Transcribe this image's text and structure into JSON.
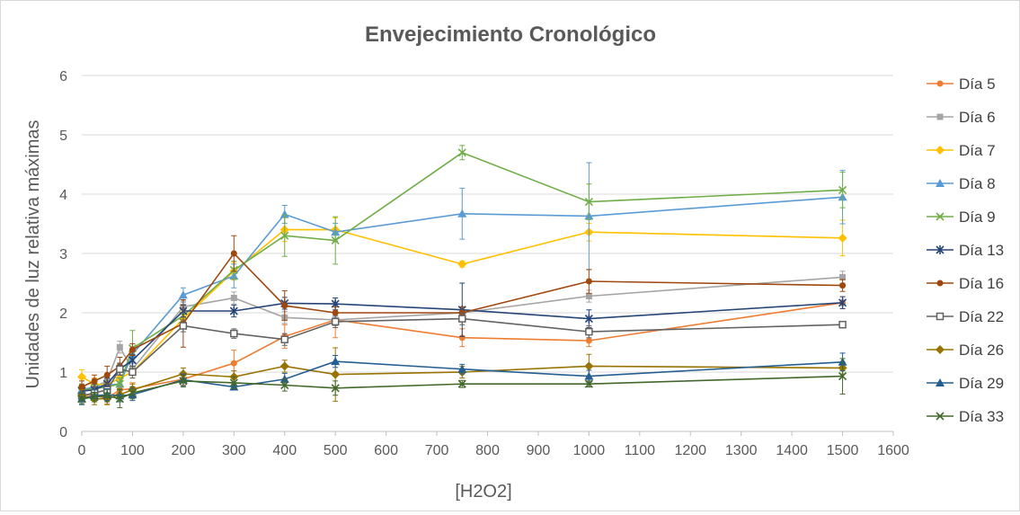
{
  "chart_data": {
    "type": "line",
    "title": "Envejecimiento Cronológico",
    "xlabel": "[H2O2]",
    "ylabel": "Unidades de luz relativa máximas",
    "xlim": [
      0,
      1600
    ],
    "ylim": [
      0,
      6
    ],
    "x_ticks": [
      "0",
      "100",
      "200",
      "300",
      "400",
      "500",
      "600",
      "700",
      "800",
      "900",
      "1000",
      "1100",
      "1200",
      "1300",
      "1400",
      "1500",
      "1600"
    ],
    "y_ticks": [
      "0",
      "1",
      "2",
      "3",
      "4",
      "5",
      "6"
    ],
    "grid": "horizontal",
    "legend_position": "right",
    "x": [
      0,
      25,
      50,
      75,
      100,
      200,
      300,
      400,
      500,
      750,
      1000,
      1500
    ],
    "series": [
      {
        "name": "Día 5",
        "color": "#ed7d31",
        "marker": "circle",
        "values": [
          0.62,
          0.6,
          0.56,
          0.7,
          0.72,
          0.88,
          1.15,
          1.6,
          1.88,
          1.58,
          1.53,
          2.17
        ],
        "errors": [
          0.1,
          0.1,
          0.1,
          0.1,
          0.1,
          0.1,
          0.22,
          0.2,
          0.3,
          0.15,
          0.1,
          0.1
        ]
      },
      {
        "name": "Día 6",
        "color": "#a5a5a5",
        "marker": "square",
        "values": [
          0.7,
          0.75,
          0.85,
          1.42,
          1.05,
          2.1,
          2.25,
          1.92,
          1.88,
          2.0,
          2.28,
          2.6
        ],
        "errors": [
          0.1,
          0.1,
          0.1,
          0.1,
          0.1,
          0.1,
          0.1,
          0.1,
          0.1,
          0.1,
          0.1,
          0.1
        ]
      },
      {
        "name": "Día 7",
        "color": "#ffc000",
        "marker": "diamond",
        "values": [
          0.92,
          0.8,
          0.78,
          0.9,
          1.0,
          1.9,
          2.7,
          3.4,
          3.4,
          2.82,
          3.36,
          3.26
        ],
        "errors": [
          0.12,
          0.1,
          0.1,
          0.1,
          0.1,
          0.1,
          0.15,
          0.2,
          0.2,
          0.05,
          0.15,
          0.3
        ]
      },
      {
        "name": "Día 8",
        "color": "#5b9bd5",
        "marker": "triangle",
        "values": [
          0.7,
          0.75,
          0.78,
          0.8,
          1.3,
          2.3,
          2.62,
          3.66,
          3.36,
          3.67,
          3.63,
          3.95
        ],
        "errors": [
          0.1,
          0.1,
          0.1,
          0.1,
          0.1,
          0.12,
          0.2,
          0.15,
          0.15,
          0.43,
          0.9,
          0.45
        ]
      },
      {
        "name": "Día 9",
        "color": "#70ad47",
        "marker": "x",
        "values": [
          0.7,
          0.72,
          0.75,
          0.8,
          1.4,
          1.95,
          2.72,
          3.3,
          3.22,
          4.7,
          3.87,
          4.07
        ],
        "errors": [
          0.1,
          0.1,
          0.1,
          0.1,
          0.3,
          0.1,
          0.15,
          0.35,
          0.4,
          0.12,
          0.3,
          0.3
        ]
      },
      {
        "name": "Día 13",
        "color": "#264478",
        "marker": "star",
        "values": [
          0.68,
          0.7,
          0.8,
          1.05,
          1.2,
          2.03,
          2.03,
          2.16,
          2.15,
          2.05,
          1.9,
          2.17
        ],
        "errors": [
          0.1,
          0.1,
          0.1,
          0.1,
          0.1,
          0.1,
          0.1,
          0.1,
          0.1,
          0.45,
          0.15,
          0.1
        ]
      },
      {
        "name": "Día 16",
        "color": "#9e480e",
        "marker": "circle",
        "values": [
          0.75,
          0.85,
          0.95,
          1.1,
          1.38,
          1.82,
          3.0,
          2.12,
          2.0,
          2.0,
          2.53,
          2.46
        ],
        "errors": [
          0.1,
          0.1,
          0.15,
          0.15,
          0.1,
          0.4,
          0.3,
          0.25,
          0.1,
          0.1,
          0.2,
          0.1
        ]
      },
      {
        "name": "Día 22",
        "color": "#636363",
        "marker": "square-open",
        "values": [
          0.6,
          0.65,
          0.7,
          1.05,
          1.0,
          1.78,
          1.65,
          1.55,
          1.85,
          1.9,
          1.68,
          1.8
        ],
        "errors": [
          0.1,
          0.1,
          0.1,
          0.1,
          0.1,
          0.1,
          0.08,
          0.1,
          0.1,
          0.1,
          0.1,
          0.05
        ]
      },
      {
        "name": "Día 26",
        "color": "#997300",
        "marker": "diamond",
        "values": [
          0.6,
          0.55,
          0.55,
          0.62,
          0.7,
          0.97,
          0.92,
          1.1,
          0.96,
          1.0,
          1.1,
          1.07
        ],
        "errors": [
          0.1,
          0.1,
          0.1,
          0.1,
          0.1,
          0.1,
          0.1,
          0.1,
          0.45,
          0.1,
          0.2,
          0.1
        ]
      },
      {
        "name": "Día 29",
        "color": "#255e91",
        "marker": "triangle",
        "values": [
          0.55,
          0.6,
          0.62,
          0.6,
          0.62,
          0.87,
          0.75,
          0.88,
          1.18,
          1.05,
          0.93,
          1.17
        ],
        "errors": [
          0.1,
          0.1,
          0.1,
          0.1,
          0.1,
          0.1,
          0.05,
          0.1,
          0.1,
          0.08,
          0.1,
          0.15
        ]
      },
      {
        "name": "Día 33",
        "color": "#43682b",
        "marker": "x",
        "values": [
          0.55,
          0.58,
          0.6,
          0.55,
          0.65,
          0.85,
          0.82,
          0.78,
          0.73,
          0.8,
          0.8,
          0.93
        ],
        "errors": [
          0.08,
          0.08,
          0.1,
          0.15,
          0.1,
          0.1,
          0.1,
          0.1,
          0.12,
          0.06,
          0.05,
          0.3
        ]
      }
    ]
  }
}
